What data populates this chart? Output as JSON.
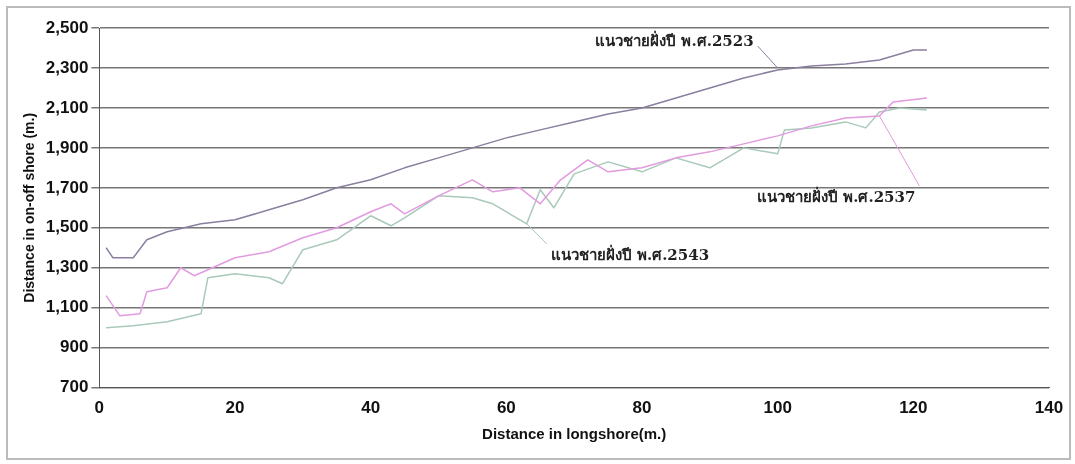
{
  "chart_data": {
    "type": "line",
    "xlabel": "Distance in longshore(m.)",
    "ylabel": "Distance in on-off shore (m.)",
    "xlim": [
      0,
      140
    ],
    "xticks": [
      0,
      20,
      40,
      60,
      80,
      100,
      120,
      140
    ],
    "ylim": [
      700,
      2500
    ],
    "yticks": [
      {
        "value": 700,
        "label": "700"
      },
      {
        "value": 900,
        "label": "900"
      },
      {
        "value": 1100,
        "label": "1,100"
      },
      {
        "value": 1300,
        "label": "1,300"
      },
      {
        "value": 1500,
        "label": "1,500"
      },
      {
        "value": 1700,
        "label": "1,700"
      },
      {
        "value": 1900,
        "label": "1,900"
      },
      {
        "value": 2100,
        "label": "2,100"
      },
      {
        "value": 2300,
        "label": "2,300"
      },
      {
        "value": 2500,
        "label": "2,500"
      }
    ],
    "grid": "y",
    "legend": false,
    "marker": "none",
    "line_style": "solid",
    "series": [
      {
        "color": "#8a7f9e",
        "x": [
          1,
          2,
          5,
          7,
          10,
          15,
          20,
          25,
          30,
          35,
          40,
          45,
          50,
          55,
          60,
          65,
          70,
          75,
          80,
          85,
          90,
          95,
          100,
          105,
          110,
          115,
          120,
          122
        ],
        "values": [
          1400,
          1350,
          1350,
          1440,
          1480,
          1520,
          1540,
          1590,
          1640,
          1700,
          1740,
          1800,
          1850,
          1900,
          1950,
          1990,
          2030,
          2070,
          2100,
          2150,
          2200,
          2250,
          2290,
          2310,
          2320,
          2340,
          2390,
          2390
        ]
      },
      {
        "color": "#e29ae0",
        "x": [
          1,
          3,
          6,
          7,
          10,
          12,
          14,
          20,
          25,
          30,
          35,
          40,
          43,
          45,
          50,
          55,
          58,
          62,
          65,
          68,
          72,
          75,
          80,
          85,
          90,
          95,
          100,
          105,
          110,
          115,
          117,
          122
        ],
        "values": [
          1160,
          1060,
          1070,
          1180,
          1200,
          1300,
          1260,
          1350,
          1380,
          1450,
          1500,
          1580,
          1620,
          1570,
          1660,
          1740,
          1680,
          1700,
          1620,
          1740,
          1840,
          1780,
          1800,
          1850,
          1880,
          1920,
          1960,
          2010,
          2050,
          2060,
          2130,
          2150
        ]
      },
      {
        "color": "#a9c9b9",
        "x": [
          1,
          5,
          10,
          15,
          16,
          20,
          25,
          27,
          30,
          35,
          40,
          43,
          45,
          50,
          55,
          58,
          62,
          63,
          65,
          67,
          70,
          75,
          80,
          85,
          90,
          95,
          100,
          101,
          105,
          110,
          113,
          115,
          118,
          122
        ],
        "values": [
          1000,
          1010,
          1030,
          1070,
          1250,
          1270,
          1250,
          1220,
          1390,
          1440,
          1560,
          1510,
          1550,
          1660,
          1650,
          1620,
          1540,
          1520,
          1690,
          1600,
          1770,
          1830,
          1780,
          1850,
          1800,
          1900,
          1870,
          1990,
          2000,
          2030,
          2000,
          2080,
          2100,
          2090
        ]
      }
    ],
    "annotations": [
      {
        "text": "แนวชายฝั่งปี พ.ศ.2523",
        "x": 100,
        "y": 2300
      },
      {
        "text": "แนวชายฝั่งปี พ.ศ.2537",
        "x": 115,
        "y": 2060
      },
      {
        "text": "แนวชายฝั่งปี พ.ศ.2543",
        "x": 63,
        "y": 1520
      }
    ]
  }
}
